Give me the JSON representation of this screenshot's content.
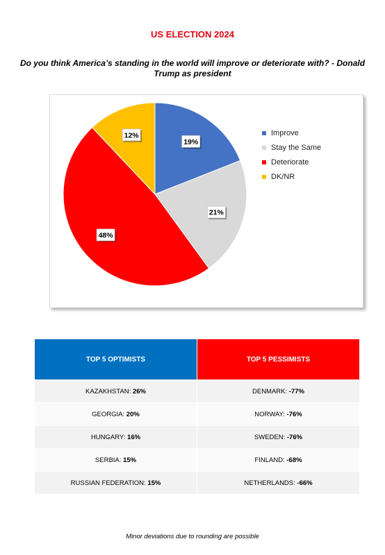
{
  "header": {
    "title": "US ELECTION 2024",
    "question": "Do you think America’s standing in the world will improve or deteriorate with? - Donald Trump as president"
  },
  "chart_data": {
    "type": "pie",
    "title": "",
    "categories": [
      "Improve",
      "Stay the Same",
      "Deteriorate",
      "DK/NR"
    ],
    "values": [
      19,
      21,
      48,
      12
    ],
    "labels": [
      "19%",
      "21%",
      "48%",
      "12%"
    ],
    "colors": [
      "#4472c4",
      "#d9d9d9",
      "#ff0000",
      "#ffc000"
    ],
    "legend_position": "right"
  },
  "table": {
    "optimists_header": "TOP 5 OPTIMISTS",
    "pessimists_header": "TOP 5 PESSIMISTS",
    "rows": [
      {
        "opt_country": "KAZAKHSTAN:",
        "opt_value": "26%",
        "pes_country": "DENMARK:",
        "pes_value": "-77%"
      },
      {
        "opt_country": "GEORGIA:",
        "opt_value": "20%",
        "pes_country": "NORWAY:",
        "pes_value": "-76%"
      },
      {
        "opt_country": "HUNGARY:",
        "opt_value": "16%",
        "pes_country": "SWEDEN:",
        "pes_value": "-76%"
      },
      {
        "opt_country": "SERBIA:",
        "opt_value": "15%",
        "pes_country": "FINLAND:",
        "pes_value": "-68%"
      },
      {
        "opt_country": "RUSSIAN FEDERATION:",
        "opt_value": "15%",
        "pes_country": "NETHERLANDS:",
        "pes_value": "-66%"
      }
    ]
  },
  "footnote": "Minor deviations due to rounding are possible"
}
